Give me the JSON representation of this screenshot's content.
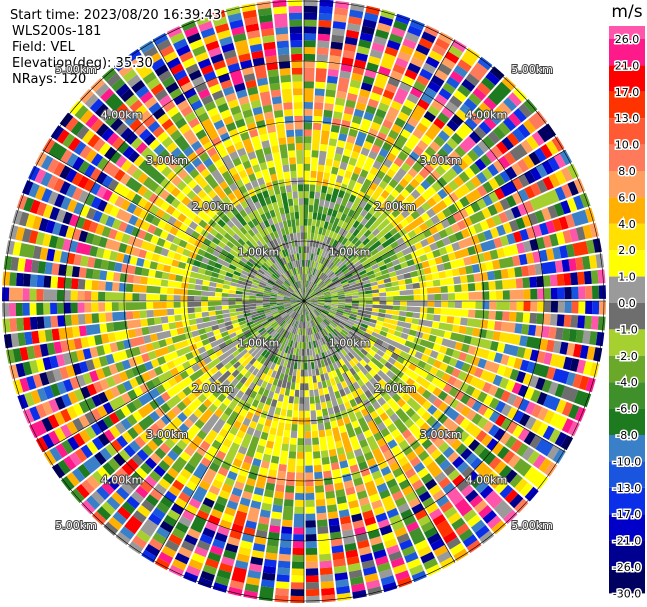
{
  "header": {
    "start_time": "Start time: 2023/08/20 16:39:43",
    "site": "WLS200s-181",
    "field": "Field: VEL",
    "elevation": "Elevation(deg): 35.30",
    "nrays": "NRays: 120"
  },
  "rings": [
    "1.00km",
    "2.00km",
    "3.00km",
    "4.00km",
    "5.00km"
  ],
  "colorbar": {
    "unit": "m/s",
    "ticks": [
      "26.0",
      "21.0",
      "17.0",
      "13.0",
      "10.0",
      "8.0",
      "6.0",
      "4.0",
      "2.0",
      "1.0",
      "0.0",
      "-1.0",
      "-2.0",
      "-4.0",
      "-6.0",
      "-8.0",
      "-10.0",
      "-13.0",
      "-17.0",
      "-21.0",
      "-26.0",
      "-30.0"
    ],
    "colors": [
      "#ff55aa",
      "#ff1a8c",
      "#ff0000",
      "#ff3300",
      "#ff5a33",
      "#ff7a5a",
      "#ffa060",
      "#ffb000",
      "#ffe000",
      "#ffff00",
      "#9a9a9a",
      "#6e6e6e",
      "#a5d030",
      "#6aa82a",
      "#3f8f2a",
      "#1e7a1e",
      "#3a80c8",
      "#1a55e0",
      "#0b2ee8",
      "#0000c8",
      "#000090",
      "#000060"
    ]
  }
}
